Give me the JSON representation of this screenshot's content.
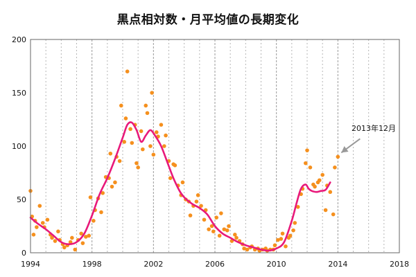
{
  "chart_data": {
    "type": "line",
    "title": "黒点相対数・月平均値の長期変化",
    "xlabel": "",
    "ylabel": "",
    "xlim": [
      1994,
      2018
    ],
    "ylim": [
      0,
      200
    ],
    "x_ticks": [
      "1994",
      "1998",
      "2002",
      "2006",
      "2010",
      "2014",
      "2018"
    ],
    "y_ticks": [
      "0",
      "50",
      "100",
      "150",
      "200"
    ],
    "grid": "vertical",
    "colors": {
      "monthly": "#f5901e",
      "smoothed": "#e8197a",
      "annotation": "#999999"
    },
    "annotation": {
      "text": "2013年12月",
      "x": 2014.0,
      "y": 90
    },
    "series": [
      {
        "kind": "monthly",
        "x": [
          1994.0,
          1994.1,
          1994.2,
          1994.3,
          1994.4,
          1994.6,
          1994.8,
          1994.9,
          1995.1,
          1995.3,
          1995.4,
          1995.6,
          1995.8,
          1995.9,
          1996.1,
          1996.2,
          1996.4,
          1996.6,
          1996.7,
          1996.9,
          1997.1,
          1997.3,
          1997.4,
          1997.6,
          1997.8,
          1997.9,
          1998.1,
          1998.2,
          1998.4,
          1998.6,
          1998.7,
          1998.9,
          1999.1,
          1999.2,
          1999.3,
          1999.5,
          1999.6,
          1999.8,
          1999.9,
          2000.1,
          2000.2,
          2000.3,
          2000.5,
          2000.6,
          2000.8,
          2000.9,
          2001.0,
          2001.2,
          2001.3,
          2001.5,
          2001.6,
          2001.8,
          2001.9,
          2002.0,
          2002.2,
          2002.3,
          2002.5,
          2002.7,
          2002.8,
          2003.0,
          2003.1,
          2003.3,
          2003.4,
          2003.6,
          2003.8,
          2003.9,
          2004.1,
          2004.3,
          2004.4,
          2004.6,
          2004.8,
          2004.9,
          2005.1,
          2005.3,
          2005.4,
          2005.6,
          2005.8,
          2005.9,
          2006.1,
          2006.3,
          2006.4,
          2006.6,
          2006.8,
          2006.9,
          2007.1,
          2007.3,
          2007.4,
          2007.6,
          2007.8,
          2007.9,
          2008.1,
          2008.3,
          2008.4,
          2008.6,
          2008.8,
          2008.9,
          2009.1,
          2009.3,
          2009.4,
          2009.6,
          2009.8,
          2009.9,
          2010.1,
          2010.3,
          2010.4,
          2010.6,
          2010.8,
          2010.9,
          2011.1,
          2011.2,
          2011.4,
          2011.6,
          2011.7,
          2011.9,
          2012.0,
          2012.2,
          2012.4,
          2012.5,
          2012.7,
          2012.8,
          2013.0,
          2013.2,
          2013.3,
          2013.5,
          2013.7,
          2013.8,
          2014.0
        ],
        "y": [
          58,
          34,
          17,
          30,
          24,
          44,
          28,
          24,
          31,
          17,
          14,
          11,
          20,
          12,
          8,
          5,
          7,
          10,
          14,
          3,
          12,
          18,
          9,
          15,
          16,
          52,
          30,
          40,
          51,
          38,
          56,
          71,
          70,
          93,
          62,
          66,
          90,
          86,
          138,
          104,
          126,
          170,
          116,
          103,
          120,
          84,
          80,
          114,
          97,
          138,
          131,
          100,
          150,
          92,
          113,
          109,
          120,
          100,
          110,
          86,
          70,
          83,
          82,
          63,
          54,
          66,
          50,
          48,
          35,
          44,
          48,
          54,
          44,
          31,
          40,
          22,
          25,
          20,
          33,
          16,
          37,
          22,
          21,
          25,
          11,
          17,
          14,
          11,
          8,
          4,
          3,
          5,
          6,
          3,
          4,
          2,
          3,
          4,
          2,
          3,
          3,
          7,
          12,
          13,
          18,
          6,
          14,
          16,
          21,
          28,
          43,
          55,
          60,
          84,
          96,
          80,
          64,
          62,
          66,
          68,
          73,
          40,
          63,
          57,
          36,
          80,
          90
        ]
      },
      {
        "kind": "smoothed",
        "x": [
          1994.0,
          1994.5,
          1995.0,
          1995.5,
          1996.0,
          1996.5,
          1997.0,
          1997.5,
          1998.0,
          1998.5,
          1999.0,
          1999.5,
          2000.0,
          2000.3,
          2000.6,
          2000.9,
          2001.2,
          2001.5,
          2001.8,
          2002.1,
          2002.5,
          2002.9,
          2003.3,
          2003.7,
          2004.0,
          2004.5,
          2005.0,
          2005.5,
          2006.0,
          2006.5,
          2007.0,
          2007.5,
          2008.0,
          2008.5,
          2009.0,
          2009.5,
          2010.0,
          2010.5,
          2011.0,
          2011.3,
          2011.6,
          2011.9,
          2012.1,
          2012.3,
          2012.6,
          2012.9,
          2013.2,
          2013.5
        ],
        "y": [
          33,
          27,
          22,
          16,
          10,
          8,
          10,
          18,
          35,
          55,
          70,
          88,
          108,
          120,
          122,
          115,
          104,
          110,
          115,
          110,
          100,
          85,
          70,
          58,
          52,
          46,
          42,
          36,
          25,
          18,
          14,
          10,
          7,
          5,
          3,
          2,
          4,
          10,
          30,
          46,
          60,
          64,
          60,
          58,
          57,
          58,
          59,
          66
        ]
      }
    ]
  }
}
